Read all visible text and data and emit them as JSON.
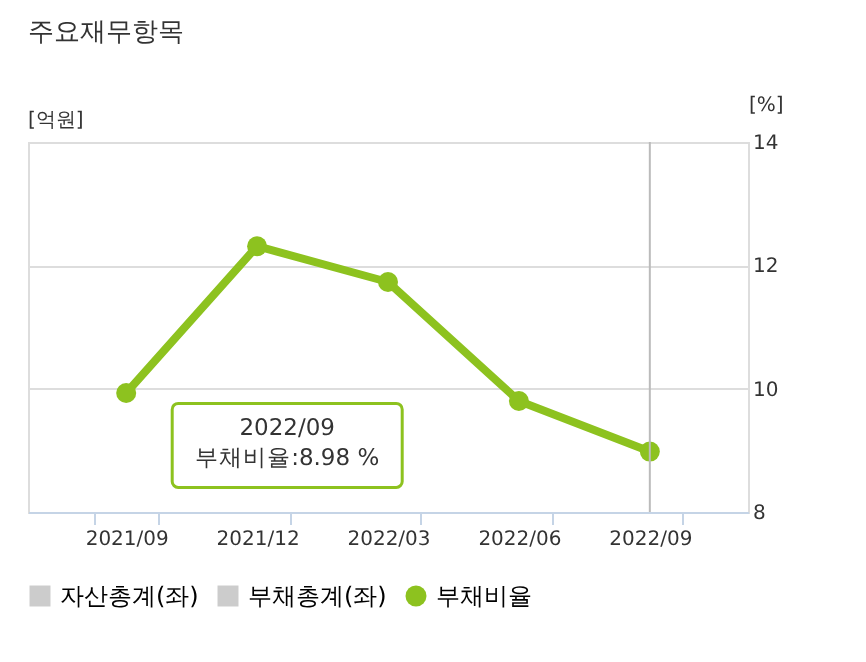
{
  "chart_data": {
    "type": "line",
    "title": "주요재무항목",
    "ylabel": "[억원]",
    "y2label": "[%]",
    "categories": [
      "2021/09",
      "2021/12",
      "2022/03",
      "2022/06",
      "2022/09"
    ],
    "series": [
      {
        "name": "자산총계(좌)",
        "color": "#cccccc",
        "values": [
          null,
          null,
          null,
          null,
          null
        ]
      },
      {
        "name": "부채총계(좌)",
        "color": "#cccccc",
        "values": [
          null,
          null,
          null,
          null,
          null
        ]
      },
      {
        "name": "부채비율",
        "color": "#8dc21f",
        "values": [
          9.93,
          12.31,
          11.73,
          9.8,
          8.98
        ],
        "axis": "y2",
        "marker": "circle"
      }
    ],
    "y2lim": [
      8,
      14
    ],
    "y2ticks": [
      8,
      10,
      12,
      14
    ],
    "grid": "y",
    "legend": "bottom",
    "ref_lines": [
      {
        "axis": "x",
        "value": "2022/09",
        "color": "#bbbbbb"
      }
    ],
    "annotations": [
      "2022/09\n부채비율:8.98 %"
    ]
  }
}
